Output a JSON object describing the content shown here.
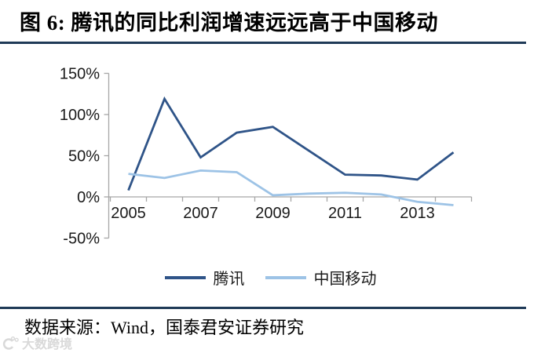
{
  "figure": {
    "title": "图 6: 腾讯的同比利润增速远远高于中国移动",
    "source_note": "数据来源：Wind，国泰君安证券研究",
    "watermark_text": "大数跨境",
    "rule_color": "#1F3A57",
    "background_color": "#FFFFFF"
  },
  "chart_data": {
    "type": "line",
    "title": "",
    "xlabel": "",
    "ylabel": "",
    "x": [
      2005,
      2006,
      2007,
      2008,
      2009,
      2010,
      2011,
      2012,
      2013,
      2014
    ],
    "series": [
      {
        "name": "腾讯",
        "color": "#2F5488",
        "values": [
          8,
          119,
          48,
          78,
          85,
          56,
          27,
          26,
          21,
          54
        ]
      },
      {
        "name": "中国移动",
        "color": "#9DC3E6",
        "values": [
          28,
          23,
          32,
          30,
          2,
          4,
          5,
          3,
          -6,
          -10
        ]
      }
    ],
    "ylim": [
      -50,
      150
    ],
    "yticks": [
      150,
      100,
      50,
      0,
      -50
    ],
    "ytick_labels": [
      "150%",
      "100%",
      "50%",
      "0%",
      "-50%"
    ],
    "xtick_labels": [
      "2005",
      "2007",
      "2009",
      "2011",
      "2013"
    ],
    "xtick_series_index": [
      0,
      2,
      4,
      6,
      8
    ],
    "grid": false,
    "legend_position": "bottom-center",
    "axis_color": "#A6A6A6",
    "tick_label_color": "#1A1A1A"
  }
}
